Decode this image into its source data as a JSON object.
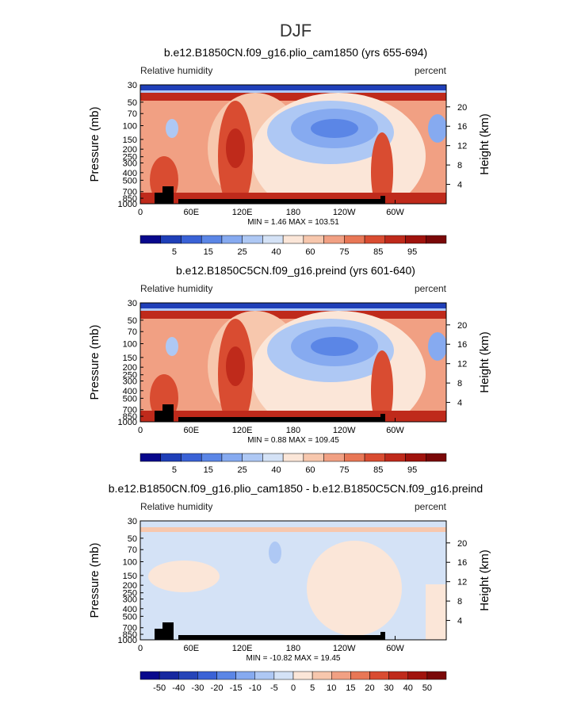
{
  "figure_title": "DJF",
  "chart_data": [
    {
      "type": "heatmap",
      "title": "b.e12.B1850CN.f09_g16.plio_cam1850 (yrs 655-694)",
      "variable": "Relative humidity",
      "units": "percent",
      "ylabel": "Pressure (mb)",
      "y2label": "Height (km)",
      "xticks": [
        "0",
        "60E",
        "120E",
        "180",
        "120W",
        "60W"
      ],
      "yticks": [
        "30",
        "50",
        "70",
        "100",
        "150",
        "200",
        "250",
        "300",
        "400",
        "500",
        "700",
        "850",
        "1000"
      ],
      "y2ticks": [
        "20",
        "16",
        "12",
        "8",
        "4"
      ],
      "minmax_text": "MIN =    1.46   MAX = 103.51",
      "min": 1.46,
      "max": 103.51,
      "colorbar_labels": [
        "5",
        "15",
        "25",
        "40",
        "60",
        "75",
        "85",
        "95"
      ],
      "colorbar_colors": [
        "#08088c",
        "#1f3fb8",
        "#3a62d6",
        "#5b86e6",
        "#86aaf0",
        "#aec8f4",
        "#d4e2f6",
        "#fbe6d8",
        "#f7c7ad",
        "#f1a083",
        "#e87756",
        "#d94c31",
        "#bf2a1b",
        "#a0130d",
        "#7a0808"
      ]
    },
    {
      "type": "heatmap",
      "title": "b.e12.B1850C5CN.f09_g16.preind (yrs 601-640)",
      "variable": "Relative humidity",
      "units": "percent",
      "ylabel": "Pressure (mb)",
      "y2label": "Height (km)",
      "xticks": [
        "0",
        "60E",
        "120E",
        "180",
        "120W",
        "60W"
      ],
      "yticks": [
        "30",
        "50",
        "70",
        "100",
        "150",
        "200",
        "250",
        "300",
        "400",
        "500",
        "700",
        "850",
        "1000"
      ],
      "y2ticks": [
        "20",
        "16",
        "12",
        "8",
        "4"
      ],
      "minmax_text": "MIN =    0.88   MAX = 109.45",
      "min": 0.88,
      "max": 109.45,
      "colorbar_labels": [
        "5",
        "15",
        "25",
        "40",
        "60",
        "75",
        "85",
        "95"
      ],
      "colorbar_colors": [
        "#08088c",
        "#1f3fb8",
        "#3a62d6",
        "#5b86e6",
        "#86aaf0",
        "#aec8f4",
        "#d4e2f6",
        "#fbe6d8",
        "#f7c7ad",
        "#f1a083",
        "#e87756",
        "#d94c31",
        "#bf2a1b",
        "#a0130d",
        "#7a0808"
      ]
    },
    {
      "type": "heatmap",
      "title": "b.e12.B1850CN.f09_g16.plio_cam1850 - b.e12.B1850C5CN.f09_g16.preind",
      "variable": "Relative humidity",
      "units": "percent",
      "ylabel": "Pressure (mb)",
      "y2label": "Height (km)",
      "xticks": [
        "0",
        "60E",
        "120E",
        "180",
        "120W",
        "60W"
      ],
      "yticks": [
        "30",
        "50",
        "70",
        "100",
        "150",
        "200",
        "250",
        "300",
        "400",
        "500",
        "700",
        "850",
        "1000"
      ],
      "y2ticks": [
        "20",
        "16",
        "12",
        "8",
        "4"
      ],
      "minmax_text": "MIN = -10.82   MAX =  19.45",
      "min": -10.82,
      "max": 19.45,
      "colorbar_labels": [
        "-50",
        "-40",
        "-30",
        "-20",
        "-15",
        "-10",
        "-5",
        "0",
        "5",
        "10",
        "15",
        "20",
        "30",
        "40",
        "50"
      ],
      "colorbar_colors": [
        "#08088c",
        "#16289f",
        "#2544b8",
        "#3a62d6",
        "#5b86e6",
        "#86aaf0",
        "#aec8f4",
        "#d4e2f6",
        "#fbe6d8",
        "#f7c7ad",
        "#f1a083",
        "#e87756",
        "#d94c31",
        "#bf2a1b",
        "#a0130d",
        "#7a0808"
      ]
    }
  ]
}
